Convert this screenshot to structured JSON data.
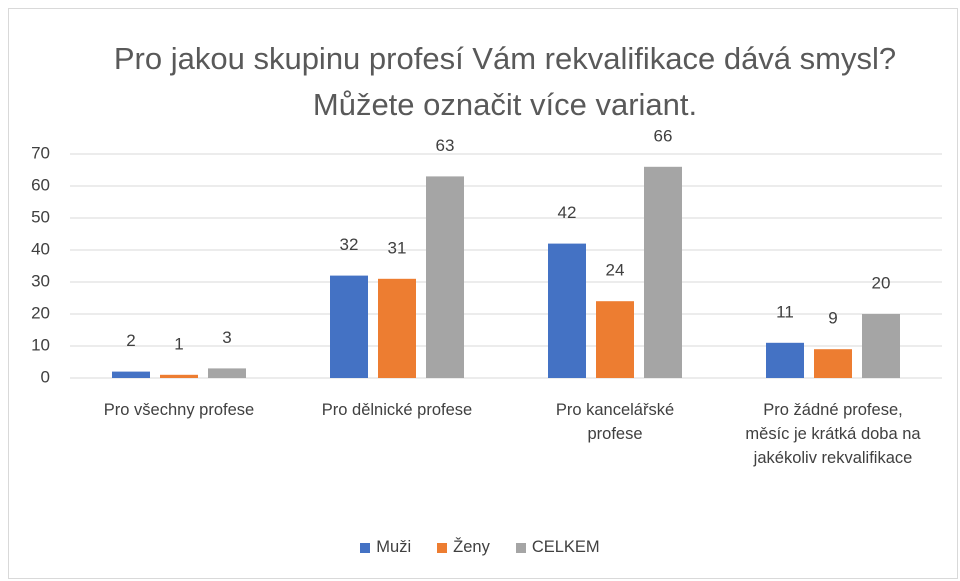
{
  "chart_data": {
    "type": "bar",
    "title": "Pro jakou skupinu profesí Vám rekvalifikace dává smysl? Můžete označit více variant.",
    "categories": [
      "Pro všechny profese",
      "Pro dělnické profese",
      "Pro kancelářské profese",
      "Pro žádné profese, měsíc je krátká doba na jakékoliv rekvalifikace"
    ],
    "series": [
      {
        "name": "Muži",
        "color": "#4472c4",
        "values": [
          2,
          32,
          42,
          11
        ]
      },
      {
        "name": "Ženy",
        "color": "#ed7d31",
        "values": [
          1,
          31,
          24,
          9
        ]
      },
      {
        "name": "CELKEM",
        "color": "#a5a5a5",
        "values": [
          3,
          63,
          66,
          20
        ]
      }
    ],
    "ylim": [
      0,
      70
    ],
    "yticks": [
      0,
      10,
      20,
      30,
      40,
      50,
      60,
      70
    ],
    "grid": true,
    "legend": "bottom"
  }
}
